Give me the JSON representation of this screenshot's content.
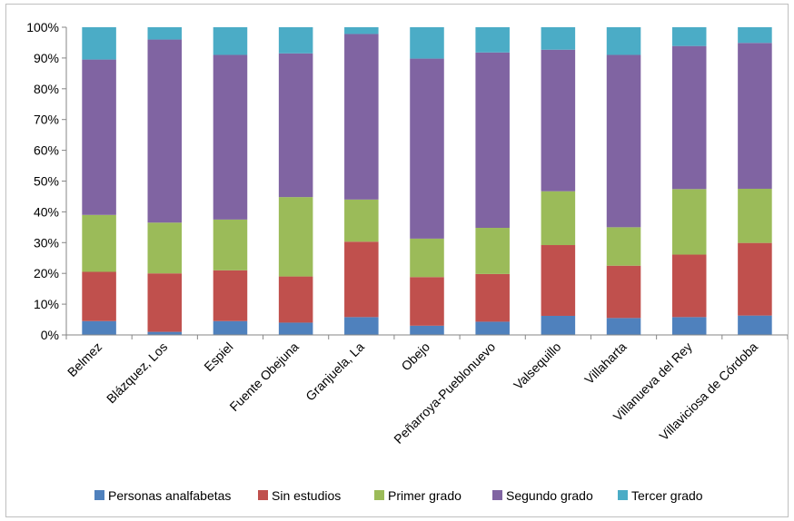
{
  "chart_data": {
    "type": "bar",
    "stacked": true,
    "percent": true,
    "title": "",
    "xlabel": "",
    "ylabel": "",
    "ylim": [
      0,
      100
    ],
    "yticks": [
      "0%",
      "10%",
      "20%",
      "30%",
      "40%",
      "50%",
      "60%",
      "70%",
      "80%",
      "90%",
      "100%"
    ],
    "grid": false,
    "legend_position": "bottom",
    "categories": [
      "Belmez",
      "Blázquez, Los",
      "Espiel",
      "Fuente Obejuna",
      "Granjuela, La",
      "Obejo",
      "Peñarroya-Pueblonuevo",
      "Valsequillo",
      "Villaharta",
      "Villanueva del Rey",
      "Villaviciosa de Córdoba"
    ],
    "series": [
      {
        "name": "Personas analfabetas",
        "color": "#4f81bd",
        "values": [
          4.5,
          1.0,
          4.5,
          4.0,
          5.8,
          3.0,
          4.3,
          6.2,
          5.5,
          5.8,
          6.3
        ]
      },
      {
        "name": "Sin estudios",
        "color": "#c0504d",
        "values": [
          16.0,
          19.0,
          16.5,
          15.0,
          24.5,
          15.8,
          15.5,
          23.0,
          17.0,
          20.3,
          23.6
        ]
      },
      {
        "name": "Primer grado",
        "color": "#9bbb59",
        "values": [
          18.5,
          16.5,
          16.5,
          25.8,
          13.7,
          12.5,
          15.0,
          17.5,
          12.5,
          21.3,
          17.6
        ]
      },
      {
        "name": "Segundo grado",
        "color": "#8064a2",
        "values": [
          50.5,
          59.5,
          53.5,
          46.7,
          53.8,
          58.5,
          57.0,
          46.0,
          56.0,
          46.5,
          47.4
        ]
      },
      {
        "name": "Tercer grado",
        "color": "#4bacc6",
        "values": [
          10.5,
          4.0,
          9.0,
          8.5,
          2.2,
          10.2,
          8.2,
          7.3,
          9.0,
          6.1,
          5.1
        ]
      }
    ]
  }
}
